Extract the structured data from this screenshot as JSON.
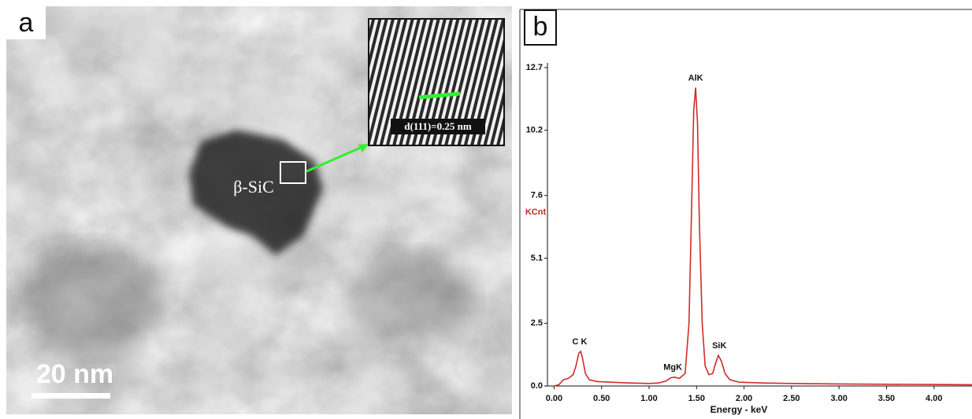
{
  "panel_a": {
    "label": "a",
    "feature_label": "β-SiC",
    "inset_label": "d(111)=0.25 nm",
    "scale_bar": "20 nm"
  },
  "chart_data": {
    "type": "line",
    "panel_label": "b",
    "x_label": "Energy - keV",
    "y_label": "KCnt",
    "color": "#d22b2b",
    "x": [
      0.0,
      0.05,
      0.1,
      0.15,
      0.2,
      0.23,
      0.26,
      0.28,
      0.3,
      0.33,
      0.37,
      0.45,
      0.6,
      0.8,
      1.0,
      1.1,
      1.18,
      1.23,
      1.27,
      1.32,
      1.38,
      1.42,
      1.45,
      1.47,
      1.49,
      1.51,
      1.53,
      1.56,
      1.59,
      1.63,
      1.67,
      1.7,
      1.73,
      1.76,
      1.8,
      1.85,
      1.95,
      2.2,
      2.5,
      3.0,
      3.5,
      4.0,
      4.4
    ],
    "values": [
      0.0,
      0.05,
      0.25,
      0.3,
      0.45,
      0.8,
      1.3,
      1.38,
      1.1,
      0.5,
      0.25,
      0.18,
      0.15,
      0.12,
      0.1,
      0.12,
      0.2,
      0.33,
      0.35,
      0.3,
      0.5,
      2.5,
      7.5,
      11.0,
      11.9,
      10.5,
      6.5,
      2.5,
      0.8,
      0.45,
      0.5,
      0.9,
      1.22,
      1.0,
      0.5,
      0.25,
      0.15,
      0.12,
      0.1,
      0.08,
      0.07,
      0.06,
      0.05
    ],
    "xlim": [
      -0.07,
      4.4
    ],
    "xticks": [
      {
        "value": 0,
        "label": "0.00"
      },
      {
        "value": 0.5,
        "label": "0.50"
      },
      {
        "value": 1,
        "label": "1.00"
      },
      {
        "value": 1.5,
        "label": "1.50"
      },
      {
        "value": 2,
        "label": "2.00"
      },
      {
        "value": 2.5,
        "label": "2.50"
      },
      {
        "value": 3,
        "label": "3.00"
      },
      {
        "value": 3.5,
        "label": "3.50"
      },
      {
        "value": 4,
        "label": "4.00"
      }
    ],
    "ylim": [
      0,
      12.7
    ],
    "yticks": [
      {
        "value": 0,
        "label": "0.0"
      },
      2.5,
      5.1,
      7.6,
      10.2,
      12.7
    ],
    "annotations": [
      {
        "text": "C K",
        "x": 0.27,
        "y": 1.38
      },
      {
        "text": "MgK",
        "x": 1.25,
        "y": 0.35
      },
      {
        "text": "AlK",
        "x": 1.49,
        "y": 11.9
      },
      {
        "text": "SiK",
        "x": 1.74,
        "y": 1.22
      }
    ]
  }
}
